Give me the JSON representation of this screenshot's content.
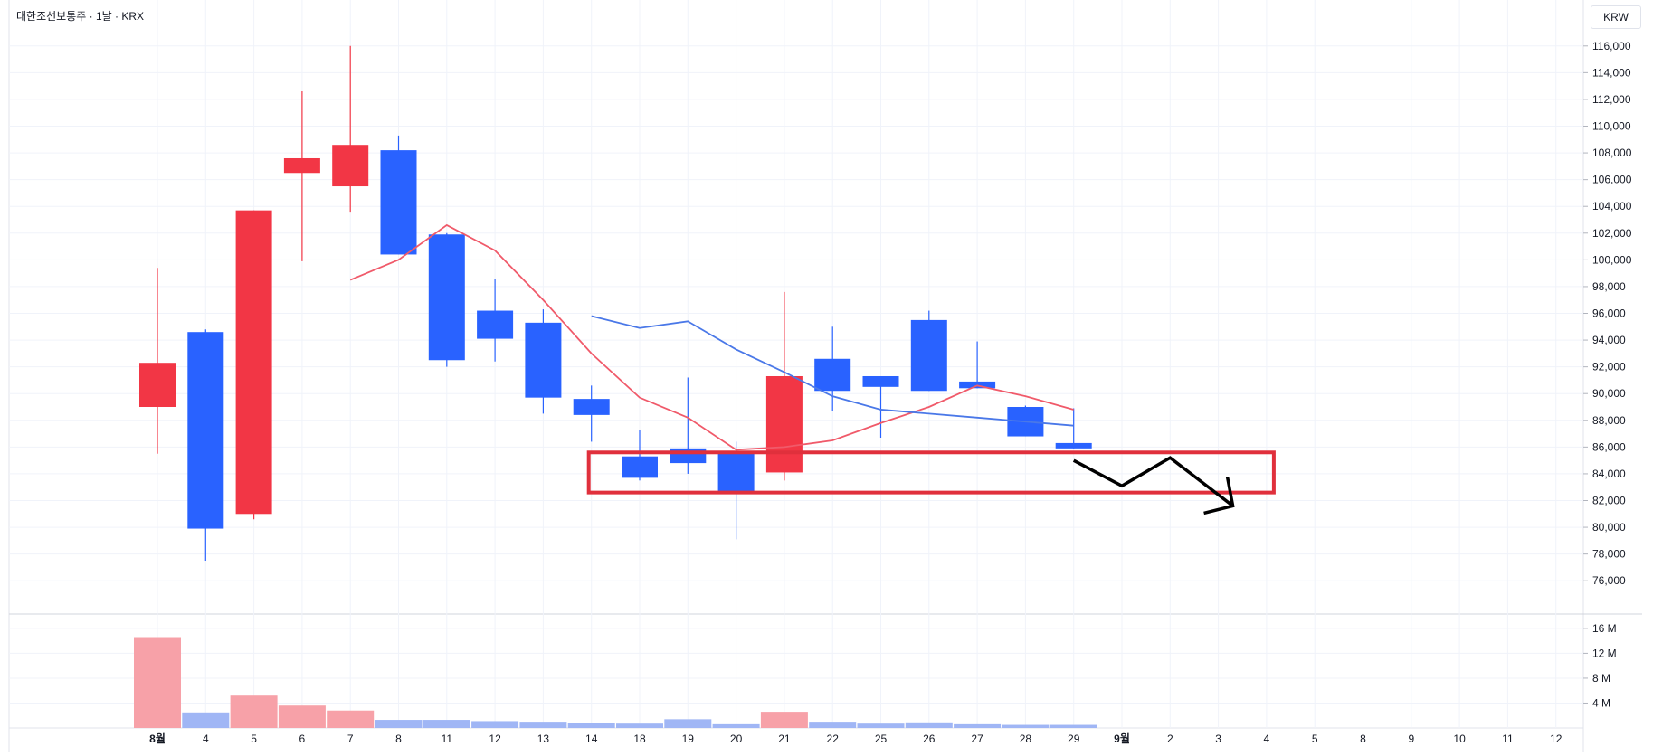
{
  "header": {
    "title": "대한조선보통주 · 1날 · KRX",
    "currency": "KRW"
  },
  "colors": {
    "up": "#f23645",
    "down": "#2962ff",
    "up_volume": "#f7a1a8",
    "down_volume": "#a0b6f5",
    "ma_short": "#f05a6a",
    "ma_long": "#4a78e8",
    "highlight_box": "#e0303c",
    "arrow": "#000000",
    "grid": "#f0f3fa"
  },
  "chart_data": {
    "type": "candlestick",
    "price_axis": {
      "ylim": [
        75000,
        117000
      ],
      "ticks": [
        "76,000",
        "78,000",
        "80,000",
        "82,000",
        "84,000",
        "86,000",
        "88,000",
        "90,000",
        "92,000",
        "94,000",
        "96,000",
        "98,000",
        "100,000",
        "102,000",
        "104,000",
        "106,000",
        "108,000",
        "110,000",
        "112,000",
        "114,000",
        "116,000"
      ]
    },
    "volume_axis": {
      "ylim": [
        0,
        17
      ],
      "ticks": [
        "4 M",
        "8 M",
        "12 M",
        "16 M"
      ]
    },
    "x_labels": [
      "8월",
      "4",
      "5",
      "6",
      "7",
      "8",
      "11",
      "12",
      "13",
      "14",
      "18",
      "19",
      "20",
      "21",
      "22",
      "25",
      "26",
      "27",
      "28",
      "29",
      "9월",
      "2",
      "3",
      "4",
      "5",
      "8",
      "9",
      "10",
      "11",
      "12"
    ],
    "bold_labels": [
      "8월",
      "9월"
    ],
    "candles": [
      {
        "date": "8월",
        "open": 89000,
        "high": 99400,
        "low": 85500,
        "close": 92300,
        "volume": 14.6
      },
      {
        "date": "4",
        "open": 94600,
        "high": 94800,
        "low": 77500,
        "close": 79900,
        "volume": 2.5
      },
      {
        "date": "5",
        "open": 81000,
        "high": 103700,
        "low": 80600,
        "close": 103700,
        "volume": 5.2
      },
      {
        "date": "6",
        "open": 106500,
        "high": 112600,
        "low": 99900,
        "close": 107600,
        "volume": 3.6
      },
      {
        "date": "7",
        "open": 105500,
        "high": 116000,
        "low": 103600,
        "close": 108600,
        "volume": 2.8
      },
      {
        "date": "8",
        "open": 108200,
        "high": 109300,
        "low": 100400,
        "close": 100400,
        "volume": 1.3
      },
      {
        "date": "11",
        "open": 101900,
        "high": 102000,
        "low": 92000,
        "close": 92500,
        "volume": 1.3
      },
      {
        "date": "12",
        "open": 96200,
        "high": 98600,
        "low": 92400,
        "close": 94100,
        "volume": 1.1
      },
      {
        "date": "13",
        "open": 95300,
        "high": 96300,
        "low": 88500,
        "close": 89700,
        "volume": 1.0
      },
      {
        "date": "14",
        "open": 89600,
        "high": 90600,
        "low": 86400,
        "close": 88400,
        "volume": 0.8
      },
      {
        "date": "18",
        "open": 85300,
        "high": 87300,
        "low": 83500,
        "close": 83700,
        "volume": 0.7
      },
      {
        "date": "19",
        "open": 85900,
        "high": 91200,
        "low": 84000,
        "close": 84800,
        "volume": 1.4
      },
      {
        "date": "20",
        "open": 85500,
        "high": 86400,
        "low": 79100,
        "close": 82500,
        "volume": 0.6
      },
      {
        "date": "21",
        "open": 84100,
        "high": 97600,
        "low": 83500,
        "close": 91300,
        "volume": 2.6
      },
      {
        "date": "22",
        "open": 92600,
        "high": 95000,
        "low": 88700,
        "close": 90200,
        "volume": 1.0
      },
      {
        "date": "25",
        "open": 91300,
        "high": 91300,
        "low": 86700,
        "close": 90500,
        "volume": 0.7
      },
      {
        "date": "26",
        "open": 95500,
        "high": 96200,
        "low": 90200,
        "close": 90200,
        "volume": 0.9
      },
      {
        "date": "27",
        "open": 90900,
        "high": 93900,
        "low": 90400,
        "close": 90400,
        "volume": 0.6
      },
      {
        "date": "28",
        "open": 89000,
        "high": 89100,
        "low": 86800,
        "close": 86800,
        "volume": 0.5
      },
      {
        "date": "29",
        "open": 86300,
        "high": 88900,
        "low": 85900,
        "close": 85900,
        "volume": 0.5
      }
    ],
    "ma_short": [
      null,
      null,
      null,
      null,
      98500,
      100000,
      102600,
      100700,
      97000,
      93000,
      89700,
      88200,
      85800,
      86000,
      86500,
      87800,
      89000,
      90600,
      89800,
      88800
    ],
    "ma_long": [
      null,
      null,
      null,
      null,
      null,
      null,
      null,
      null,
      null,
      95800,
      94900,
      95400,
      93300,
      91600,
      89800,
      88800,
      88500,
      88200,
      87900,
      87600
    ],
    "annotations": {
      "box": {
        "from_date_index": 9,
        "to_date_index": 23,
        "top": 85600,
        "bottom": 82600
      },
      "zigzag": [
        {
          "i": 19,
          "price": 85000
        },
        {
          "i": 20,
          "price": 83100
        },
        {
          "i": 21,
          "price": 85200
        },
        {
          "i": 22.3,
          "price": 81600
        }
      ]
    }
  }
}
